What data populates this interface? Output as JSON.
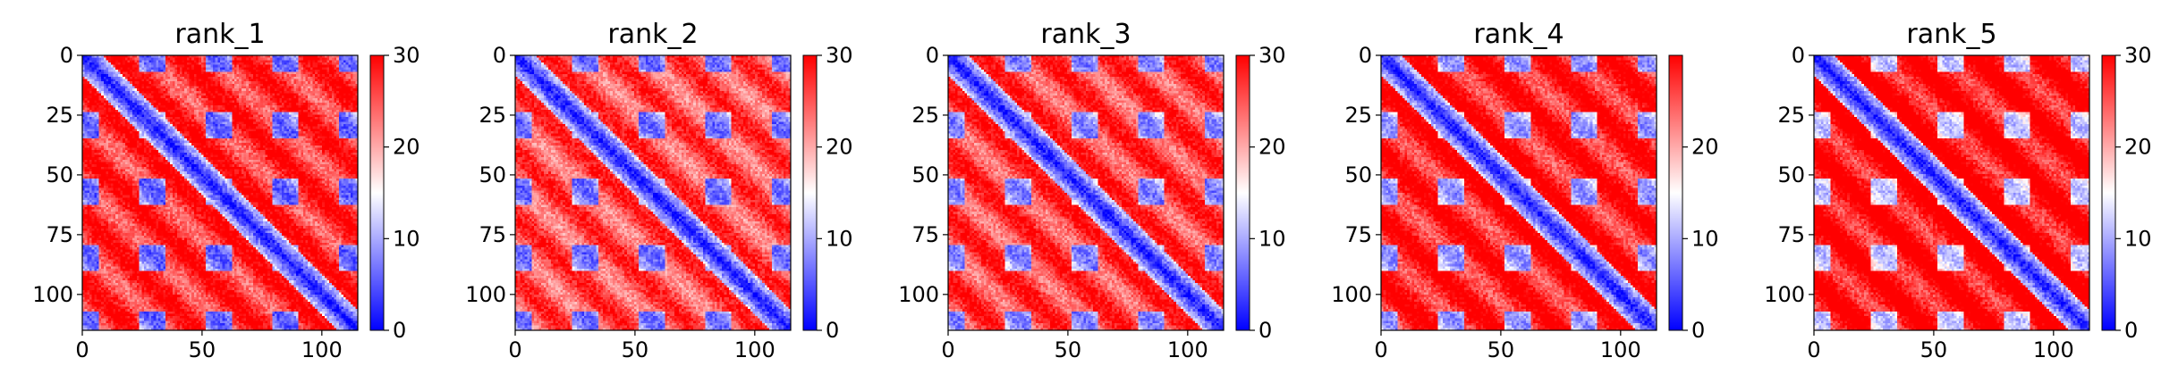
{
  "chart_data": [
    {
      "type": "heatmap",
      "title": "rank_1",
      "matrix_size": 116,
      "xlim": [
        0,
        115
      ],
      "ylim": [
        115,
        0
      ],
      "x_ticks": [
        "0",
        "50",
        "100"
      ],
      "y_ticks": [
        "0",
        "25",
        "50",
        "75",
        "100"
      ],
      "colorbar": {
        "range": [
          0,
          30
        ],
        "ticks": [
          "0",
          "10",
          "20",
          "30"
        ],
        "colormap": "bwr"
      },
      "pattern": {
        "diag_value": 1,
        "stripe_period": 27,
        "block_period": 28,
        "block_low": 7,
        "far_high": 27,
        "noise": 3,
        "seed": 11
      }
    },
    {
      "type": "heatmap",
      "title": "rank_2",
      "matrix_size": 116,
      "xlim": [
        0,
        115
      ],
      "ylim": [
        115,
        0
      ],
      "x_ticks": [
        "0",
        "50",
        "100"
      ],
      "y_ticks": [
        "0",
        "25",
        "50",
        "75",
        "100"
      ],
      "colorbar": {
        "range": [
          0,
          30
        ],
        "ticks": [
          "0",
          "10",
          "20",
          "30"
        ],
        "colormap": "bwr"
      },
      "pattern": {
        "diag_value": 1,
        "stripe_period": 27,
        "block_period": 28,
        "block_low": 8,
        "far_high": 25,
        "noise": 3,
        "seed": 23
      }
    },
    {
      "type": "heatmap",
      "title": "rank_3",
      "matrix_size": 116,
      "xlim": [
        0,
        115
      ],
      "ylim": [
        115,
        0
      ],
      "x_ticks": [
        "0",
        "50",
        "100"
      ],
      "y_ticks": [
        "0",
        "25",
        "50",
        "75",
        "100"
      ],
      "colorbar": {
        "range": [
          0,
          30
        ],
        "ticks": [
          "0",
          "10",
          "20",
          "30"
        ],
        "colormap": "bwr"
      },
      "pattern": {
        "diag_value": 1,
        "stripe_period": 27,
        "block_period": 28,
        "block_low": 9,
        "far_high": 26,
        "noise": 3,
        "seed": 37
      }
    },
    {
      "type": "heatmap",
      "title": "rank_4",
      "matrix_size": 116,
      "xlim": [
        0,
        115
      ],
      "ylim": [
        115,
        0
      ],
      "x_ticks": [
        "0",
        "50",
        "100"
      ],
      "y_ticks": [
        "0",
        "25",
        "50",
        "75",
        "100"
      ],
      "colorbar": {
        "range": [
          0,
          30
        ],
        "ticks": [
          "0",
          "10",
          "20"
        ],
        "colormap": "bwr"
      },
      "pattern": {
        "diag_value": 1,
        "stripe_period": 27,
        "block_period": 28,
        "block_low": 10,
        "far_high": 28,
        "noise": 3,
        "seed": 41
      }
    },
    {
      "type": "heatmap",
      "title": "rank_5",
      "matrix_size": 116,
      "xlim": [
        0,
        115
      ],
      "ylim": [
        115,
        0
      ],
      "x_ticks": [
        "0",
        "50",
        "100"
      ],
      "y_ticks": [
        "0",
        "25",
        "50",
        "75",
        "100"
      ],
      "colorbar": {
        "range": [
          0,
          30
        ],
        "ticks": [
          "0",
          "10",
          "20",
          "30"
        ],
        "colormap": "bwr"
      },
      "pattern": {
        "diag_value": 1,
        "stripe_period": 27,
        "block_period": 28,
        "block_low": 13,
        "far_high": 29,
        "noise": 3,
        "seed": 53
      }
    }
  ]
}
